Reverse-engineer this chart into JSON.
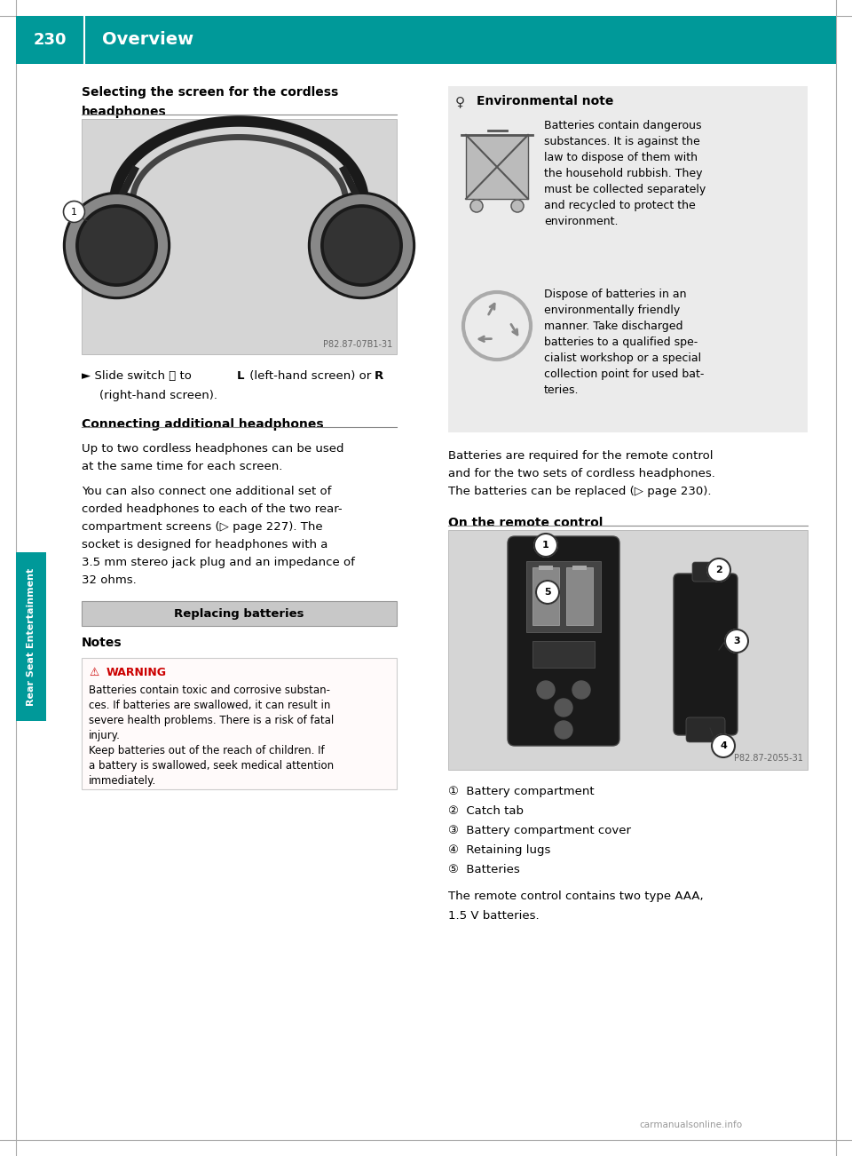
{
  "page_number": "230",
  "header_title": "Overview",
  "header_bg_color": "#009999",
  "header_text_color": "#FFFFFF",
  "page_bg_color": "#FFFFFF",
  "sidebar_label": "Rear Seat Entertainment",
  "sidebar_color": "#009999",
  "border_color": "#AAAAAA",
  "line_color": "#888888",
  "env_bg": "#EBEBEB",
  "box_bg": "#C8C8C8",
  "warning_bg": "#FFFFFF",
  "warning_border": "#BBBBBB",
  "image1_caption": "P82.87-07B1-31",
  "remote_caption": "P82.87-2055-31",
  "footer_text": "carmanualsonline.info",
  "numbered_items": [
    "①  Battery compartment",
    "②  Catch tab",
    "③  Battery compartment cover",
    "④  Retaining lugs",
    "⑤  Batteries"
  ]
}
